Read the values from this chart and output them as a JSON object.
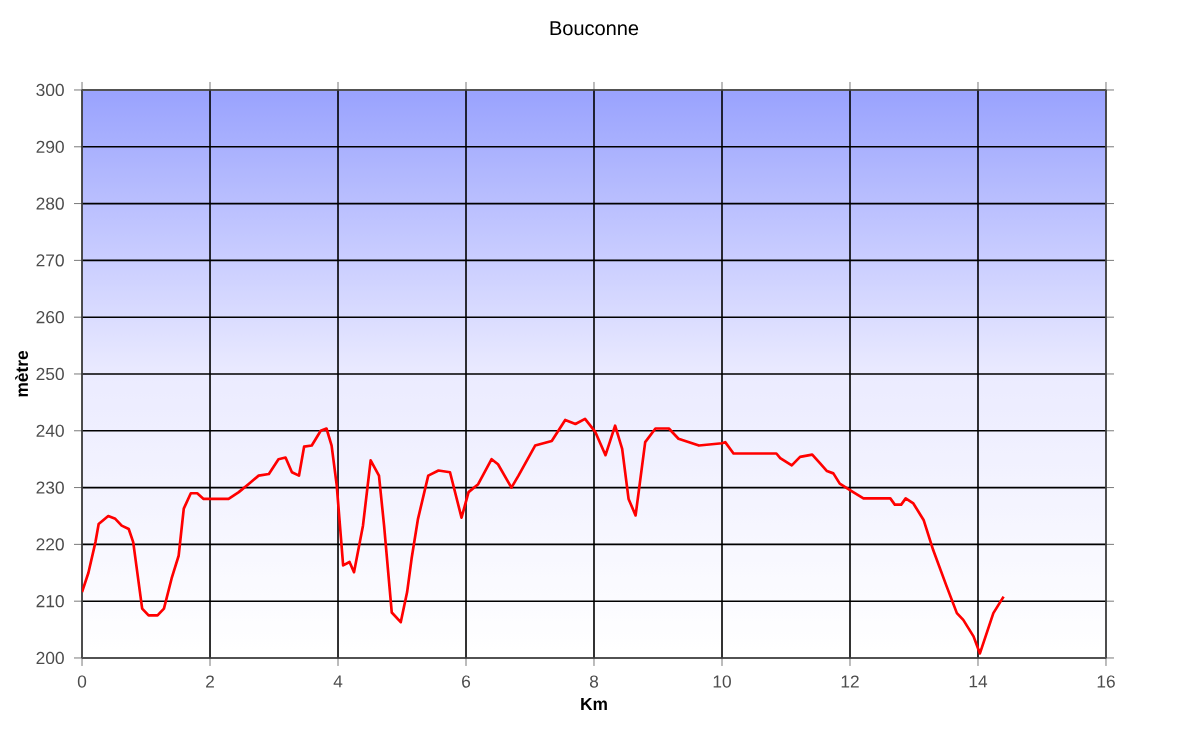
{
  "chart_data": {
    "type": "line",
    "title": "Bouconne",
    "xlabel": "Km",
    "ylabel": "mètre",
    "xlim": [
      0,
      16
    ],
    "xticks": [
      0,
      2,
      4,
      6,
      8,
      10,
      12,
      14,
      16
    ],
    "ylim": [
      200,
      300
    ],
    "yticks": [
      200,
      210,
      220,
      230,
      240,
      250,
      260,
      270,
      280,
      290,
      300
    ],
    "grid": true,
    "marker": "none",
    "line_style": "solid",
    "series": [
      {
        "color": "#ff0000",
        "x": [
          0,
          0.1,
          0.21,
          0.26,
          0.41,
          0.52,
          0.62,
          0.73,
          0.8,
          0.94,
          1.04,
          1.18,
          1.28,
          1.4,
          1.51,
          1.59,
          1.7,
          1.8,
          1.9,
          2.29,
          2.45,
          2.6,
          2.76,
          2.92,
          3.07,
          3.18,
          3.28,
          3.39,
          3.47,
          3.59,
          3.73,
          3.82,
          3.9,
          3.98,
          4.08,
          4.18,
          4.25,
          4.39,
          4.51,
          4.64,
          4.72,
          4.84,
          4.98,
          5.08,
          5.15,
          5.25,
          5.41,
          5.57,
          5.75,
          5.93,
          6.04,
          6.19,
          6.4,
          6.5,
          6.71,
          6.82,
          7.08,
          7.34,
          7.55,
          7.71,
          7.86,
          8.02,
          8.18,
          8.33,
          8.44,
          8.54,
          8.65,
          8.8,
          8.96,
          9.17,
          9.32,
          9.64,
          10,
          10.05,
          10.18,
          10.85,
          10.91,
          11.09,
          11.22,
          11.41,
          11.53,
          11.64,
          11.74,
          11.84,
          12.05,
          12.21,
          12.63,
          12.7,
          12.8,
          12.87,
          12.99,
          13.15,
          13.3,
          13.51,
          13.67,
          13.77,
          13.93,
          14.03,
          14.24,
          14.4
        ],
        "values": [
          211.6,
          215,
          220.4,
          223.6,
          225,
          224.5,
          223.3,
          222.7,
          220.4,
          208.7,
          207.5,
          207.5,
          208.7,
          214,
          218,
          226.3,
          229,
          229,
          228,
          228,
          229.2,
          230.6,
          232.1,
          232.4,
          235,
          235.3,
          232.7,
          232.1,
          237.2,
          237.4,
          240,
          240.4,
          237.4,
          230.4,
          216.3,
          216.9,
          215.1,
          223.3,
          234.8,
          232.1,
          223.3,
          208,
          206.3,
          211.6,
          217.5,
          224.5,
          232.1,
          233,
          232.7,
          224.7,
          229.2,
          230.6,
          235,
          234.1,
          230,
          232.1,
          237.4,
          238.2,
          241.9,
          241.2,
          242.1,
          239.8,
          235.7,
          240.9,
          236.8,
          228,
          225.1,
          238,
          240.4,
          240.4,
          238.6,
          237.4,
          237.8,
          238,
          236,
          236,
          235.2,
          233.9,
          235.4,
          235.8,
          234.3,
          232.9,
          232.5,
          230.7,
          229.2,
          228.1,
          228.1,
          227,
          227,
          228.1,
          227.2,
          224.3,
          219,
          212.6,
          207.9,
          206.7,
          203.8,
          200.8,
          207.9,
          210.8
        ]
      }
    ]
  }
}
